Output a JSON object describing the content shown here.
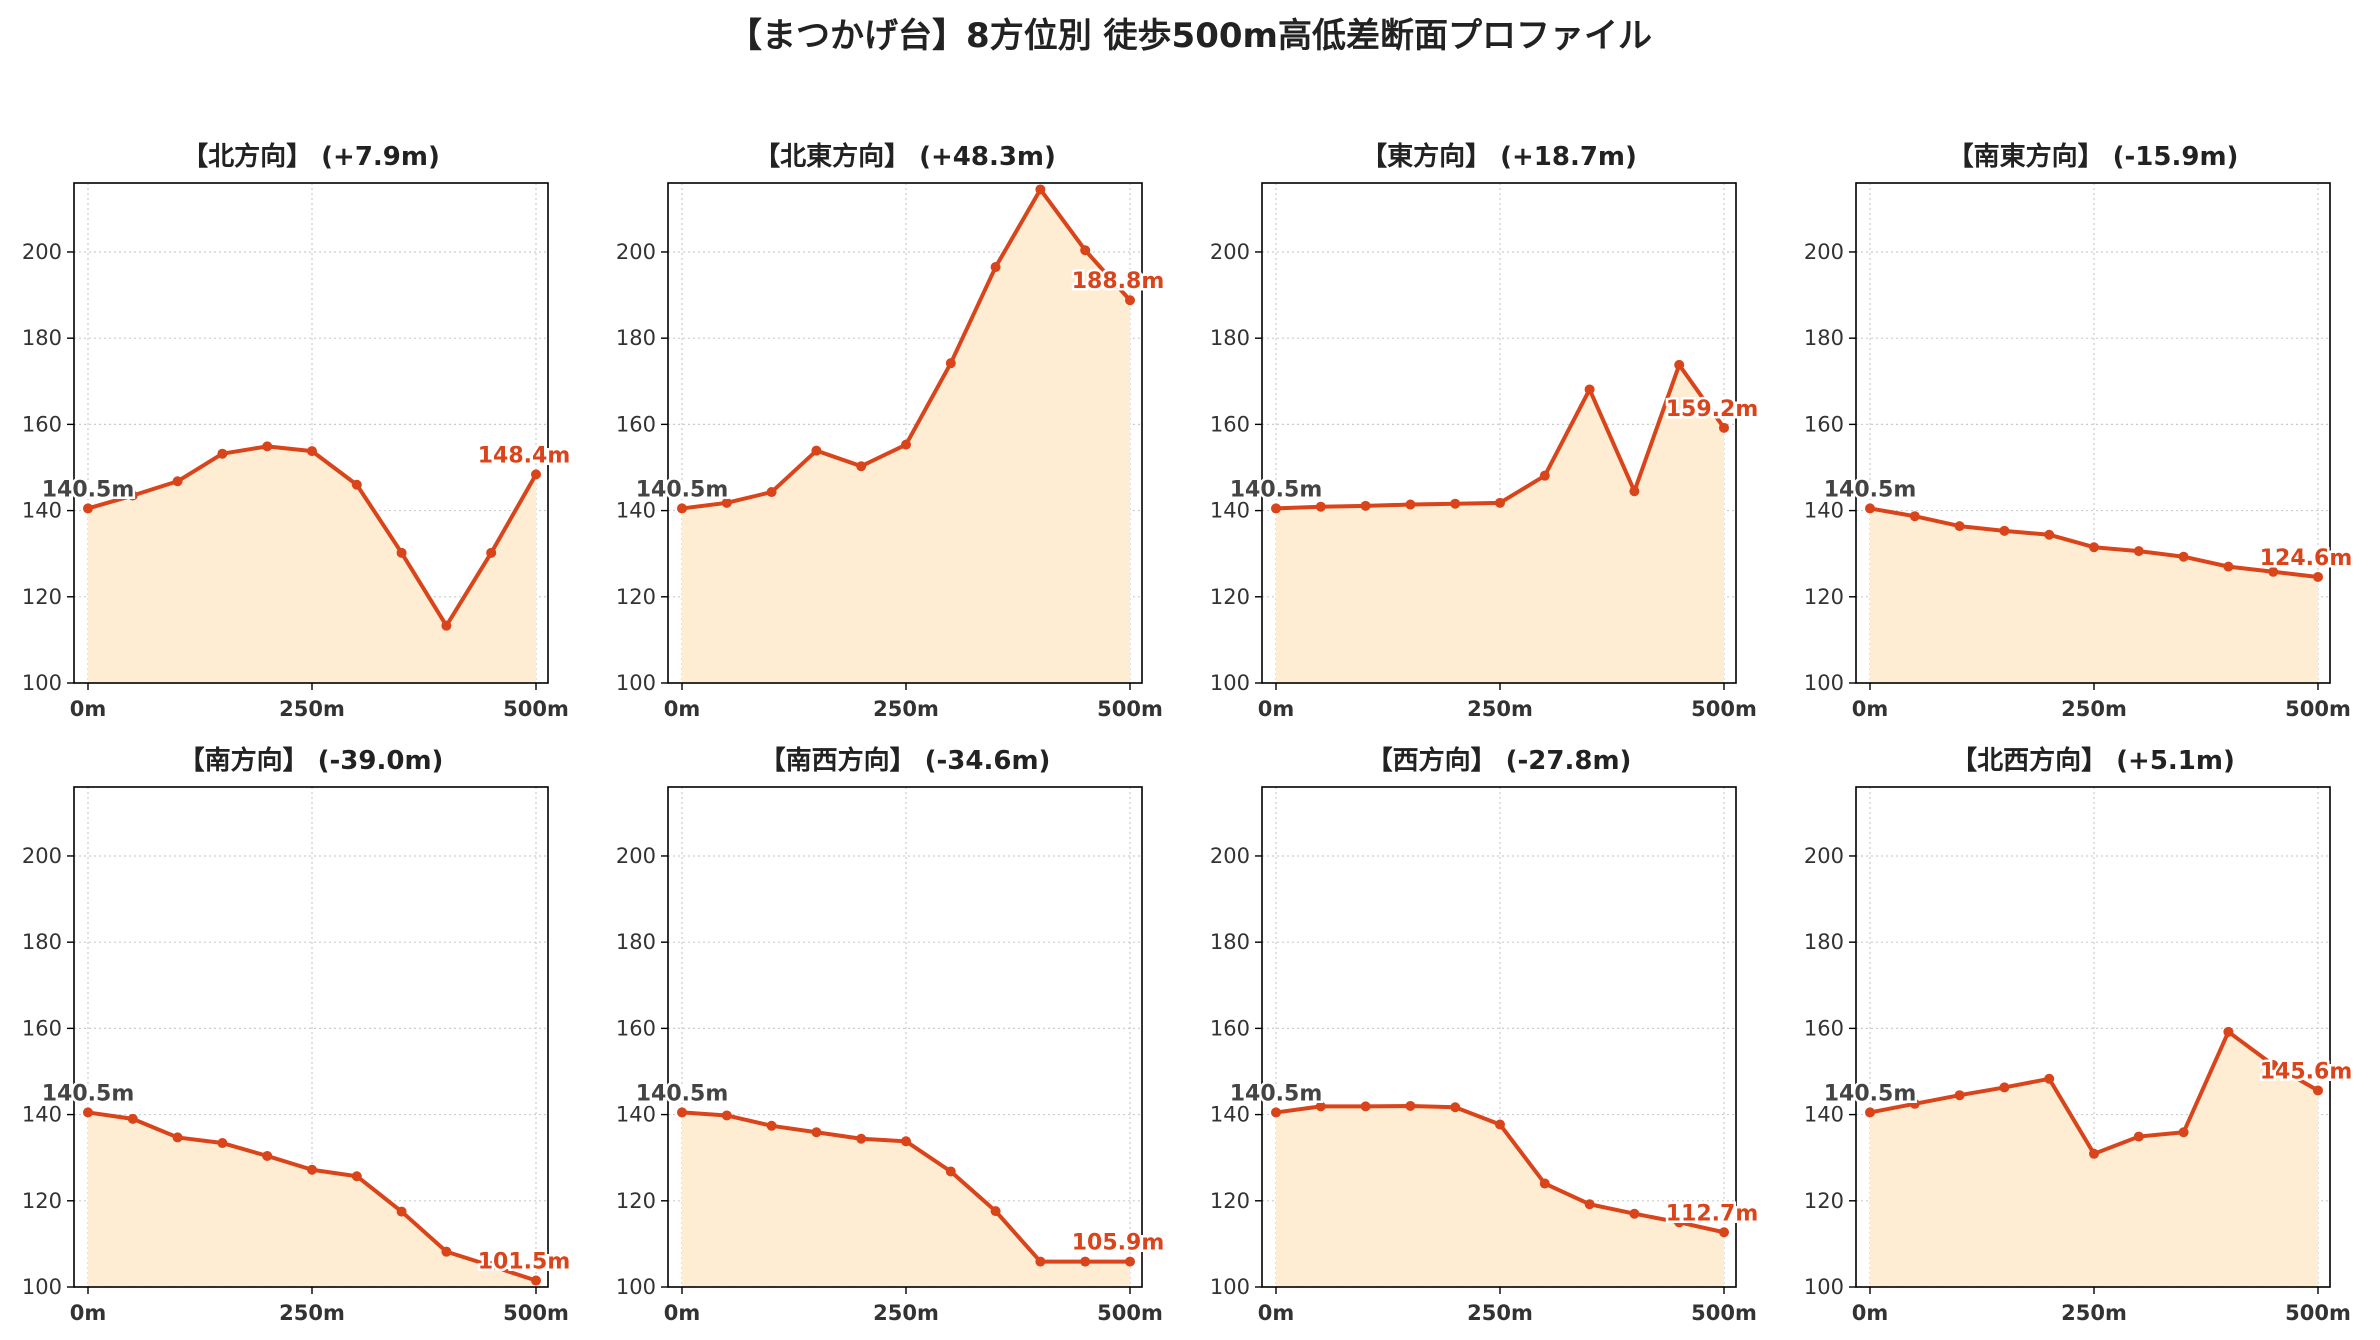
{
  "title": "【まつかげ台】8方位別 徒歩500m高低差断面プロファイル",
  "colors": {
    "line": "#d9441a",
    "fill": "#ffedd3",
    "start_label": "#444444",
    "end_label": "#d9441a",
    "grid": "#cccccc",
    "tick_text": "#333333",
    "title_text": "#222222"
  },
  "chart_data": [
    {
      "type": "area",
      "title": "【北方向】 (+7.9m)",
      "x": [
        0,
        50,
        100,
        150,
        200,
        250,
        300,
        350,
        400,
        450,
        500
      ],
      "values": [
        140.5,
        143.5,
        146.8,
        153.2,
        154.9,
        153.8,
        146,
        130.2,
        113.3,
        130.2,
        148.4
      ],
      "start_label": "140.5m",
      "end_label": "148.4m",
      "xticks": [
        "0m",
        "250m",
        "500m"
      ],
      "ylim": [
        100,
        216
      ],
      "yticks": [
        100,
        120,
        140,
        160,
        180,
        200
      ],
      "grid": true
    },
    {
      "type": "area",
      "title": "【北東方向】 (+48.3m)",
      "x": [
        0,
        50,
        100,
        150,
        200,
        250,
        300,
        350,
        400,
        450,
        500
      ],
      "values": [
        140.5,
        141.8,
        144.3,
        153.9,
        150.3,
        155.3,
        174.2,
        196.5,
        214.5,
        200.4,
        188.8
      ],
      "start_label": "140.5m",
      "end_label": "188.8m",
      "xticks": [
        "0m",
        "250m",
        "500m"
      ],
      "ylim": [
        100,
        216
      ],
      "yticks": [
        100,
        120,
        140,
        160,
        180,
        200
      ],
      "grid": true
    },
    {
      "type": "area",
      "title": "【東方向】 (+18.7m)",
      "x": [
        0,
        50,
        100,
        150,
        200,
        250,
        300,
        350,
        400,
        450,
        500
      ],
      "values": [
        140.5,
        140.9,
        141.1,
        141.4,
        141.6,
        141.8,
        148.1,
        168.1,
        144.5,
        173.8,
        159.2
      ],
      "start_label": "140.5m",
      "end_label": "159.2m",
      "xticks": [
        "0m",
        "250m",
        "500m"
      ],
      "ylim": [
        100,
        216
      ],
      "yticks": [
        100,
        120,
        140,
        160,
        180,
        200
      ],
      "grid": true
    },
    {
      "type": "area",
      "title": "【南東方向】 (-15.9m)",
      "x": [
        0,
        50,
        100,
        150,
        200,
        250,
        300,
        350,
        400,
        450,
        500
      ],
      "values": [
        140.5,
        138.7,
        136.4,
        135.3,
        134.4,
        131.5,
        130.6,
        129.3,
        127,
        125.8,
        124.6
      ],
      "start_label": "140.5m",
      "end_label": "124.6m",
      "xticks": [
        "0m",
        "250m",
        "500m"
      ],
      "ylim": [
        100,
        216
      ],
      "yticks": [
        100,
        120,
        140,
        160,
        180,
        200
      ],
      "grid": true
    },
    {
      "type": "area",
      "title": "【南方向】 (-39.0m)",
      "x": [
        0,
        50,
        100,
        150,
        200,
        250,
        300,
        350,
        400,
        450,
        500
      ],
      "values": [
        140.5,
        139,
        134.7,
        133.4,
        130.4,
        127.2,
        125.7,
        117.5,
        108.2,
        104.9,
        101.5
      ],
      "start_label": "140.5m",
      "end_label": "101.5m",
      "xticks": [
        "0m",
        "250m",
        "500m"
      ],
      "ylim": [
        100,
        216
      ],
      "yticks": [
        100,
        120,
        140,
        160,
        180,
        200
      ],
      "grid": true
    },
    {
      "type": "area",
      "title": "【南西方向】 (-34.6m)",
      "x": [
        0,
        50,
        100,
        150,
        200,
        250,
        300,
        350,
        400,
        450,
        500
      ],
      "values": [
        140.5,
        139.8,
        137.4,
        135.9,
        134.4,
        133.8,
        126.8,
        117.6,
        105.9,
        105.9,
        105.9
      ],
      "start_label": "140.5m",
      "end_label": "105.9m",
      "xticks": [
        "0m",
        "250m",
        "500m"
      ],
      "ylim": [
        100,
        216
      ],
      "yticks": [
        100,
        120,
        140,
        160,
        180,
        200
      ],
      "grid": true
    },
    {
      "type": "area",
      "title": "【西方向】 (-27.8m)",
      "x": [
        0,
        50,
        100,
        150,
        200,
        250,
        300,
        350,
        400,
        450,
        500
      ],
      "values": [
        140.5,
        141.9,
        141.9,
        142,
        141.7,
        137.7,
        124,
        119.2,
        117,
        115,
        112.7
      ],
      "start_label": "140.5m",
      "end_label": "112.7m",
      "xticks": [
        "0m",
        "250m",
        "500m"
      ],
      "ylim": [
        100,
        216
      ],
      "yticks": [
        100,
        120,
        140,
        160,
        180,
        200
      ],
      "grid": true
    },
    {
      "type": "area",
      "title": "【北西方向】 (+5.1m)",
      "x": [
        0,
        50,
        100,
        150,
        200,
        250,
        300,
        350,
        400,
        450,
        500
      ],
      "values": [
        140.5,
        142.5,
        144.5,
        146.3,
        148.3,
        130.9,
        134.9,
        135.9,
        159.2,
        151.5,
        145.6
      ],
      "start_label": "140.5m",
      "end_label": "145.6m",
      "xticks": [
        "0m",
        "250m",
        "500m"
      ],
      "ylim": [
        100,
        216
      ],
      "yticks": [
        100,
        120,
        140,
        160,
        180,
        200
      ],
      "grid": true
    }
  ]
}
